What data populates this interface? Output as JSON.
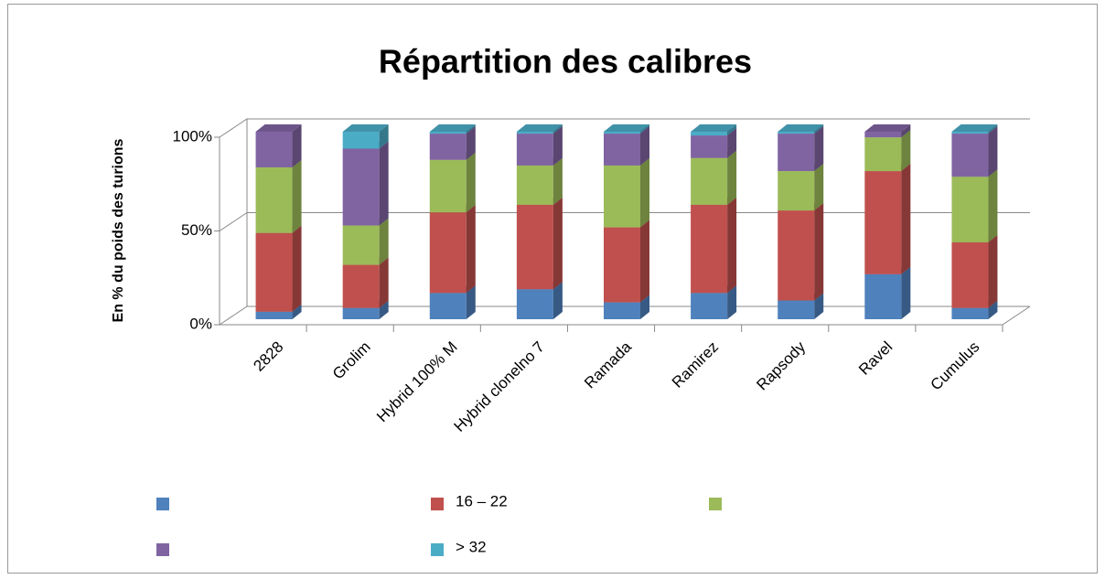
{
  "chart_data": {
    "type": "bar3d_stacked",
    "title": "Répartition des calibres",
    "y_label": "En % du poids des turions",
    "categories": [
      "2828",
      "Grolim",
      "Hybrid 100% M",
      "Hybrid clonelno 7",
      "Ramada",
      "Ramirez",
      "Rapsody",
      "Ravel",
      "Cumulus"
    ],
    "series": [
      {
        "name": null,
        "color": "#4f81bd",
        "values": [
          4,
          6,
          14,
          16,
          9,
          14,
          10,
          24,
          6
        ]
      },
      {
        "name": "16 – 22",
        "color": "#c0504d",
        "values": [
          42,
          23,
          43,
          45,
          40,
          47,
          48,
          55,
          35
        ]
      },
      {
        "name": null,
        "color": "#9bbb59",
        "values": [
          35,
          21,
          28,
          21,
          33,
          25,
          21,
          18,
          35
        ]
      },
      {
        "name": null,
        "color": "#8064a2",
        "values": [
          19,
          41,
          14,
          17,
          17,
          12,
          20,
          3,
          23
        ]
      },
      {
        "name": "> 32",
        "color": "#4bacc6",
        "values": [
          0,
          9,
          1,
          1,
          1,
          2,
          1,
          0,
          1
        ]
      }
    ],
    "ylim": [
      0,
      100
    ],
    "yticks": [
      {
        "value": 0,
        "label": "0%"
      },
      {
        "value": 50,
        "label": "50%"
      },
      {
        "value": 100,
        "label": "100%"
      }
    ],
    "grid": true
  }
}
